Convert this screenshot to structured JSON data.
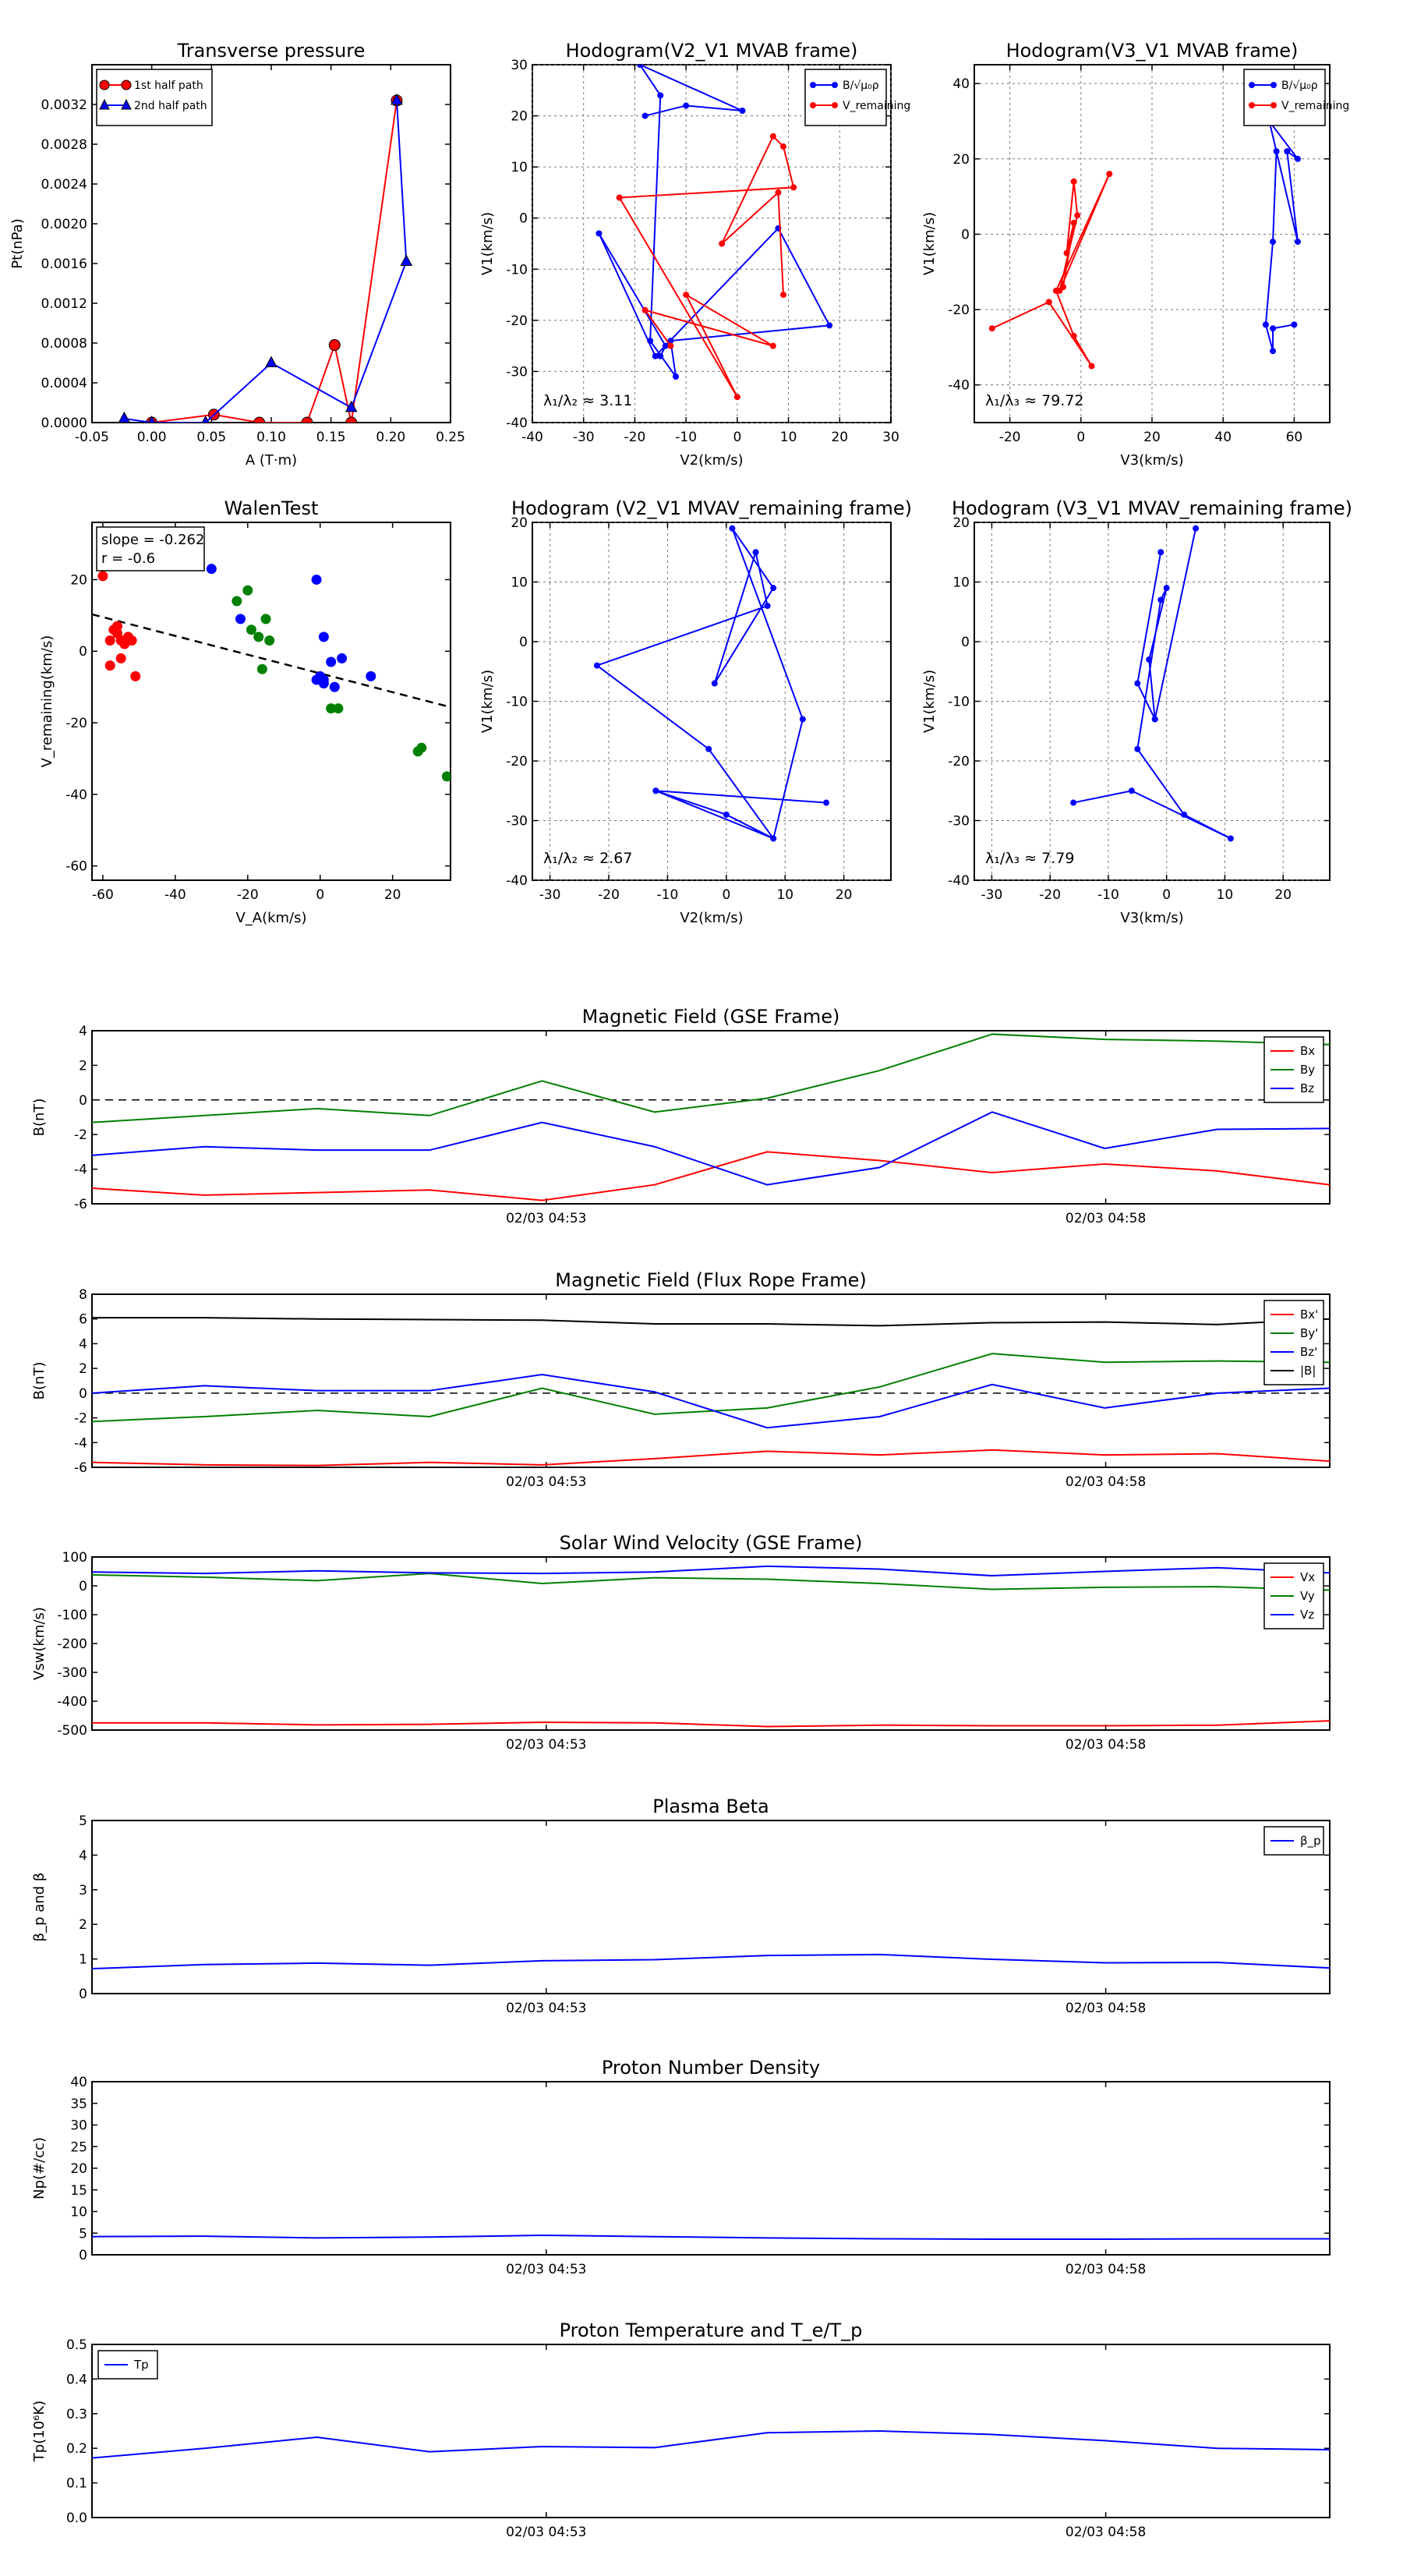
{
  "ui": {
    "colors": {
      "red": "#ff0000",
      "blue": "#0000ff",
      "green": "#008000",
      "black": "#000000"
    }
  },
  "chart_data": [
    {
      "id": "pt",
      "type": "scatter",
      "title": "Transverse pressure",
      "xlabel": "A (T·m)",
      "ylabel": "Pt(nPa)",
      "xlim": [
        -0.05,
        0.25
      ],
      "ylim": [
        0,
        0.0036
      ],
      "xticks": [
        "-0.05",
        "0.00",
        "0.05",
        "0.10",
        "0.15",
        "0.20",
        "0.25"
      ],
      "yticks": [
        "0.0000",
        "0.0004",
        "0.0008",
        "0.0012",
        "0.0016",
        "0.0020",
        "0.0024",
        "0.0028",
        "0.0032"
      ],
      "grid": false,
      "legend": "top-left",
      "series": [
        {
          "name": "1st half path",
          "color": "#ff0000",
          "marker": "circle",
          "x": [
            0.0,
            0.052,
            0.09,
            0.13,
            0.153,
            0.167,
            0.205
          ],
          "y": [
            0.0,
            8e-05,
            0.0,
            0.0,
            0.00078,
            0.0,
            0.00324
          ]
        },
        {
          "name": "2nd half path",
          "color": "#0000ff",
          "marker": "triangle",
          "x": [
            -0.023,
            0.0,
            0.045,
            0.1,
            0.167,
            0.213,
            0.205
          ],
          "y": [
            4e-05,
            0.0,
            0.0,
            0.0006,
            0.00015,
            0.00162,
            0.00324
          ]
        }
      ]
    },
    {
      "id": "h1",
      "type": "line",
      "title": "Hodogram(V2_V1 MVAB frame)",
      "xlabel": "V2(km/s)",
      "ylabel": "V1(km/s)",
      "xlim": [
        -40,
        30
      ],
      "ylim": [
        -40,
        30
      ],
      "xticks": [
        "-40",
        "-30",
        "-20",
        "-10",
        "0",
        "10",
        "20",
        "30"
      ],
      "yticks": [
        "-40",
        "-30",
        "-20",
        "-10",
        "0",
        "10",
        "20",
        "30"
      ],
      "grid": true,
      "legend": "top-right",
      "annotation": "λ₁/λ₂ ≈ 3.11",
      "series": [
        {
          "name": "B/√μ₀ρ",
          "color": "#0000ff",
          "x": [
            -18,
            -10,
            1,
            -19,
            -15,
            -17,
            -12,
            -13,
            18,
            8,
            -16,
            -27,
            -14,
            -15
          ],
          "y": [
            20,
            22,
            21,
            30,
            24,
            -24,
            -31,
            -24,
            -21,
            -2,
            -27,
            -3,
            -25,
            -27
          ]
        },
        {
          "name": "V_remaining",
          "color": "#ff0000",
          "x": [
            -13,
            -18,
            7,
            -10,
            0,
            -23,
            11,
            9,
            7,
            -3,
            8,
            9
          ],
          "y": [
            -25,
            -18,
            -25,
            -15,
            -35,
            4,
            6,
            14,
            16,
            -5,
            5,
            -15
          ]
        }
      ]
    },
    {
      "id": "h2",
      "type": "line",
      "title": "Hodogram(V3_V1 MVAB frame)",
      "xlabel": "V3(km/s)",
      "ylabel": "V1(km/s)",
      "xlim": [
        -30,
        70
      ],
      "ylim": [
        -50,
        45
      ],
      "xticks": [
        "-20",
        "0",
        "20",
        "40",
        "60"
      ],
      "yticks": [
        "-40",
        "-20",
        "0",
        "20",
        "40"
      ],
      "grid": true,
      "legend": "top-right",
      "annotation": "λ₁/λ₃ ≈ 79.72",
      "series": [
        {
          "name": "B/√μ₀ρ",
          "color": "#0000ff",
          "x": [
            53,
            61,
            58,
            61,
            53,
            55,
            54,
            52,
            54,
            54,
            60
          ],
          "y": [
            30,
            20,
            22,
            -2,
            30,
            22,
            -2,
            -24,
            -31,
            -25,
            -24
          ]
        },
        {
          "name": "V_remaining",
          "color": "#ff0000",
          "x": [
            -25,
            -9,
            3,
            -2,
            -7,
            8,
            -6,
            -1,
            -2,
            -4,
            -2,
            -5
          ],
          "y": [
            -25,
            -18,
            -35,
            -27,
            -15,
            16,
            -15,
            5,
            14,
            -5,
            3,
            -14
          ]
        }
      ]
    },
    {
      "id": "walen",
      "type": "scatter",
      "title": "WalenTest",
      "xlabel": "V_A(km/s)",
      "ylabel": "V_remaining(km/s)",
      "xlim": [
        -63,
        36
      ],
      "ylim": [
        -64,
        36
      ],
      "xticks": [
        "-60",
        "-40",
        "-20",
        "0",
        "20"
      ],
      "yticks": [
        "-60",
        "-40",
        "-20",
        "0",
        "20"
      ],
      "grid": false,
      "annotation_lines": [
        "slope = -0.262",
        "r = -0.6"
      ],
      "fit": {
        "slope": -0.262,
        "intercept": -6.2
      },
      "series": [
        {
          "color": "#ff0000",
          "x": [
            -60,
            -58,
            -57,
            -56,
            -55,
            -54,
            -53,
            -52,
            -51,
            -55,
            -58,
            -56
          ],
          "y": [
            21,
            3,
            6,
            5,
            3,
            2,
            4,
            3,
            -7,
            -2,
            -4,
            7
          ]
        },
        {
          "color": "#008000",
          "x": [
            -23,
            -20,
            -19,
            -17,
            -14,
            -16,
            -15,
            3,
            5,
            27,
            28,
            35
          ],
          "y": [
            14,
            17,
            6,
            4,
            3,
            -5,
            9,
            -16,
            -16,
            -28,
            -27,
            -35
          ]
        },
        {
          "color": "#0000ff",
          "x": [
            -30,
            -22,
            -1,
            1,
            1,
            3,
            4,
            6,
            14,
            0,
            1,
            -1
          ],
          "y": [
            23,
            9,
            20,
            4,
            -8,
            -3,
            -10,
            -2,
            -7,
            -7,
            -9,
            -8
          ]
        }
      ]
    },
    {
      "id": "h3",
      "type": "line",
      "title": "Hodogram (V2_V1 MVAV_remaining frame)",
      "xlabel": "V2(km/s)",
      "ylabel": "V1(km/s)",
      "xlim": [
        -33,
        28
      ],
      "ylim": [
        -40,
        20
      ],
      "xticks": [
        "-30",
        "-20",
        "-10",
        "0",
        "10",
        "20"
      ],
      "yticks": [
        "-40",
        "-30",
        "-20",
        "-10",
        "0",
        "10",
        "20"
      ],
      "grid": true,
      "annotation": "λ₁/λ₂ ≈ 2.67",
      "series": [
        {
          "color": "#0000ff",
          "x": [
            17,
            -12,
            8,
            13,
            1,
            8,
            -2,
            5,
            7,
            -22,
            -3,
            8,
            0,
            -12
          ],
          "y": [
            -27,
            -25,
            -33,
            -13,
            19,
            9,
            -7,
            15,
            6,
            -4,
            -18,
            -33,
            -29,
            -25
          ]
        }
      ]
    },
    {
      "id": "h4",
      "type": "line",
      "title": "Hodogram (V3_V1 MVAV_remaining frame)",
      "xlabel": "V3(km/s)",
      "ylabel": "V1(km/s)",
      "xlim": [
        -33,
        28
      ],
      "ylim": [
        -40,
        20
      ],
      "xticks": [
        "-30",
        "-20",
        "-10",
        "0",
        "10",
        "20"
      ],
      "yticks": [
        "-40",
        "-30",
        "-20",
        "-10",
        "0",
        "10",
        "20"
      ],
      "grid": true,
      "annotation": "λ₁/λ₃ ≈ 7.79",
      "series": [
        {
          "color": "#0000ff",
          "x": [
            -16,
            -6,
            11,
            3,
            -5,
            -1,
            0,
            -3,
            -2,
            5,
            -2,
            -5,
            -1
          ],
          "y": [
            -27,
            -25,
            -33,
            -29,
            -18,
            7,
            9,
            -3,
            -13,
            19,
            -13,
            -7,
            15
          ]
        }
      ]
    },
    {
      "id": "ts1",
      "type": "line",
      "title": "Magnetic Field (GSE Frame)",
      "ylabel": "B(nT)",
      "ylim": [
        -6,
        4
      ],
      "yticks": [
        "-6",
        "-4",
        "-2",
        "0",
        "2",
        "4"
      ],
      "xticklabels": [
        "02/03 04:53",
        "02/03 04:58"
      ],
      "legend": "top-right",
      "zero_line": true,
      "series": [
        {
          "name": "Bx",
          "color": "#ff0000",
          "values": [
            -5.1,
            -5.5,
            -5.35,
            -5.2,
            -5.8,
            -4.9,
            -3.0,
            -3.5,
            -4.2,
            -3.7,
            -4.1,
            -4.9
          ]
        },
        {
          "name": "By",
          "color": "#008000",
          "values": [
            -1.3,
            -0.9,
            -0.5,
            -0.9,
            1.1,
            -0.7,
            0.1,
            1.7,
            3.8,
            3.5,
            3.4,
            3.2
          ]
        },
        {
          "name": "Bz",
          "color": "#0000ff",
          "values": [
            -3.2,
            -2.7,
            -2.9,
            -2.9,
            -1.3,
            -2.7,
            -4.9,
            -3.9,
            -0.7,
            -2.8,
            -1.7,
            -1.65
          ]
        }
      ]
    },
    {
      "id": "ts2",
      "type": "line",
      "title": "Magnetic Field (Flux Rope Frame)",
      "ylabel": "B(nT)",
      "ylim": [
        -6,
        8
      ],
      "yticks": [
        "-6",
        "-4",
        "-2",
        "0",
        "2",
        "4",
        "6",
        "8"
      ],
      "xticklabels": [
        "02/03 04:53",
        "02/03 04:58"
      ],
      "legend": "top-right",
      "zero_line": true,
      "series": [
        {
          "name": "Bx'",
          "color": "#ff0000",
          "values": [
            -5.6,
            -5.8,
            -5.85,
            -5.6,
            -5.8,
            -5.3,
            -4.7,
            -5.0,
            -4.6,
            -5.0,
            -4.9,
            -5.5
          ]
        },
        {
          "name": "By'",
          "color": "#008000",
          "values": [
            -2.3,
            -1.9,
            -1.4,
            -1.9,
            0.4,
            -1.7,
            -1.2,
            0.5,
            3.2,
            2.5,
            2.6,
            2.5
          ]
        },
        {
          "name": "Bz'",
          "color": "#0000ff",
          "values": [
            0.0,
            0.6,
            0.2,
            0.2,
            1.5,
            0.1,
            -2.8,
            -1.9,
            0.7,
            -1.2,
            0.0,
            0.4
          ]
        },
        {
          "name": "|B|",
          "color": "#000000",
          "values": [
            6.1,
            6.1,
            6.0,
            5.95,
            5.9,
            5.6,
            5.6,
            5.45,
            5.7,
            5.75,
            5.55,
            6.0
          ]
        }
      ]
    },
    {
      "id": "ts3",
      "type": "line",
      "title": "Solar Wind Velocity (GSE Frame)",
      "ylabel": "Vsw(km/s)",
      "ylim": [
        -500,
        100
      ],
      "yticks": [
        "-500",
        "-400",
        "-300",
        "-200",
        "-100",
        "0",
        "100"
      ],
      "xticklabels": [
        "02/03 04:53",
        "02/03 04:58"
      ],
      "legend": "top-right",
      "series": [
        {
          "name": "Vx",
          "color": "#ff0000",
          "values": [
            -475,
            -475,
            -482,
            -480,
            -473,
            -475,
            -488,
            -483,
            -485,
            -485,
            -483,
            -468
          ]
        },
        {
          "name": "Vy",
          "color": "#008000",
          "values": [
            38,
            30,
            18,
            43,
            8,
            28,
            23,
            8,
            -12,
            -5,
            -3,
            -15
          ]
        },
        {
          "name": "Vz",
          "color": "#0000ff",
          "values": [
            48,
            43,
            52,
            45,
            43,
            48,
            68,
            58,
            35,
            50,
            63,
            45
          ]
        }
      ]
    },
    {
      "id": "ts4",
      "type": "line",
      "title": "Plasma Beta",
      "ylabel": "β_p and β",
      "ylim": [
        0,
        5
      ],
      "yticks": [
        "0",
        "1",
        "2",
        "3",
        "4",
        "5"
      ],
      "xticklabels": [
        "02/03 04:53",
        "02/03 04:58"
      ],
      "legend": "top-right",
      "series": [
        {
          "name": "β_p",
          "color": "#0000ff",
          "values": [
            0.72,
            0.84,
            0.88,
            0.82,
            0.95,
            0.98,
            1.1,
            1.13,
            0.99,
            0.89,
            0.9,
            0.74
          ]
        }
      ]
    },
    {
      "id": "ts5",
      "type": "line",
      "title": "Proton Number Density",
      "ylabel": "Np(#/cc)",
      "ylim": [
        0,
        40
      ],
      "yticks": [
        "0",
        "5",
        "10",
        "15",
        "20",
        "25",
        "30",
        "35",
        "40"
      ],
      "xticklabels": [
        "02/03 04:53",
        "02/03 04:58"
      ],
      "series": [
        {
          "color": "#0000ff",
          "values": [
            4.2,
            4.3,
            3.9,
            4.1,
            4.5,
            4.2,
            3.9,
            3.7,
            3.6,
            3.6,
            3.7,
            3.7
          ]
        }
      ]
    },
    {
      "id": "ts6",
      "type": "line",
      "title": "Proton Temperature and T_e/T_p",
      "ylabel": "Tp(10⁶K)",
      "ylim": [
        0,
        0.5
      ],
      "yticks": [
        "0.0",
        "0.1",
        "0.2",
        "0.3",
        "0.4",
        "0.5"
      ],
      "xticklabels": [
        "02/03 04:53",
        "02/03 04:58"
      ],
      "legend": "top-left",
      "series": [
        {
          "name": "Tp",
          "color": "#0000ff",
          "values": [
            0.172,
            0.2,
            0.232,
            0.19,
            0.205,
            0.202,
            0.245,
            0.25,
            0.24,
            0.222,
            0.2,
            0.196
          ]
        }
      ]
    }
  ]
}
